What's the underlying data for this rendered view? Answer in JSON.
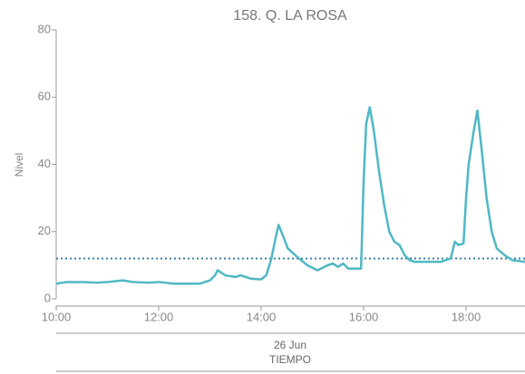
{
  "chart_data": {
    "type": "line",
    "title": "158. Q. LA ROSA",
    "y_label": "Nivel",
    "x_label": "TIEMPO",
    "date": "26 Jun",
    "x": [
      10.0,
      10.2,
      10.5,
      10.8,
      11.0,
      11.3,
      11.5,
      11.8,
      12.0,
      12.3,
      12.5,
      12.8,
      13.0,
      13.1,
      13.15,
      13.3,
      13.5,
      13.6,
      13.8,
      14.0,
      14.1,
      14.2,
      14.28,
      14.34,
      14.42,
      14.52,
      14.7,
      14.9,
      15.1,
      15.3,
      15.4,
      15.5,
      15.6,
      15.7,
      15.95,
      16.0,
      16.05,
      16.12,
      16.2,
      16.3,
      16.4,
      16.5,
      16.6,
      16.7,
      16.8,
      16.9,
      17.0,
      17.3,
      17.5,
      17.7,
      17.78,
      17.85,
      17.95,
      18.0,
      18.05,
      18.15,
      18.22,
      18.3,
      18.4,
      18.5,
      18.6,
      18.75,
      18.9,
      19.15
    ],
    "series": [
      {
        "name": "Nivel",
        "color": "#4fb8c4",
        "values": [
          4.5,
          5,
          5,
          4.8,
          5,
          5.5,
          5,
          4.8,
          5,
          4.5,
          4.5,
          4.5,
          5.5,
          7,
          8.5,
          7,
          6.5,
          7,
          6,
          5.8,
          7,
          12,
          18,
          22,
          19,
          15,
          12.5,
          10,
          8.5,
          10,
          10.5,
          9.5,
          10.5,
          9,
          9,
          35,
          52,
          57,
          50,
          38,
          28,
          20,
          17,
          16,
          13,
          11.5,
          11,
          11,
          11,
          12,
          17,
          16,
          16.5,
          30,
          40,
          50,
          56,
          45,
          30,
          20,
          15,
          13,
          11.5,
          11
        ]
      }
    ],
    "threshold": 12,
    "xlim": [
      10,
      19.15
    ],
    "ylim": [
      0,
      80
    ],
    "xticks": [
      {
        "value": 10,
        "label": "10:00"
      },
      {
        "value": 12,
        "label": "12:00"
      },
      {
        "value": 14,
        "label": "14:00"
      },
      {
        "value": 16,
        "label": "16:00"
      },
      {
        "value": 18,
        "label": "18:00"
      }
    ],
    "yticks": [
      0,
      20,
      40,
      60,
      80
    ]
  }
}
